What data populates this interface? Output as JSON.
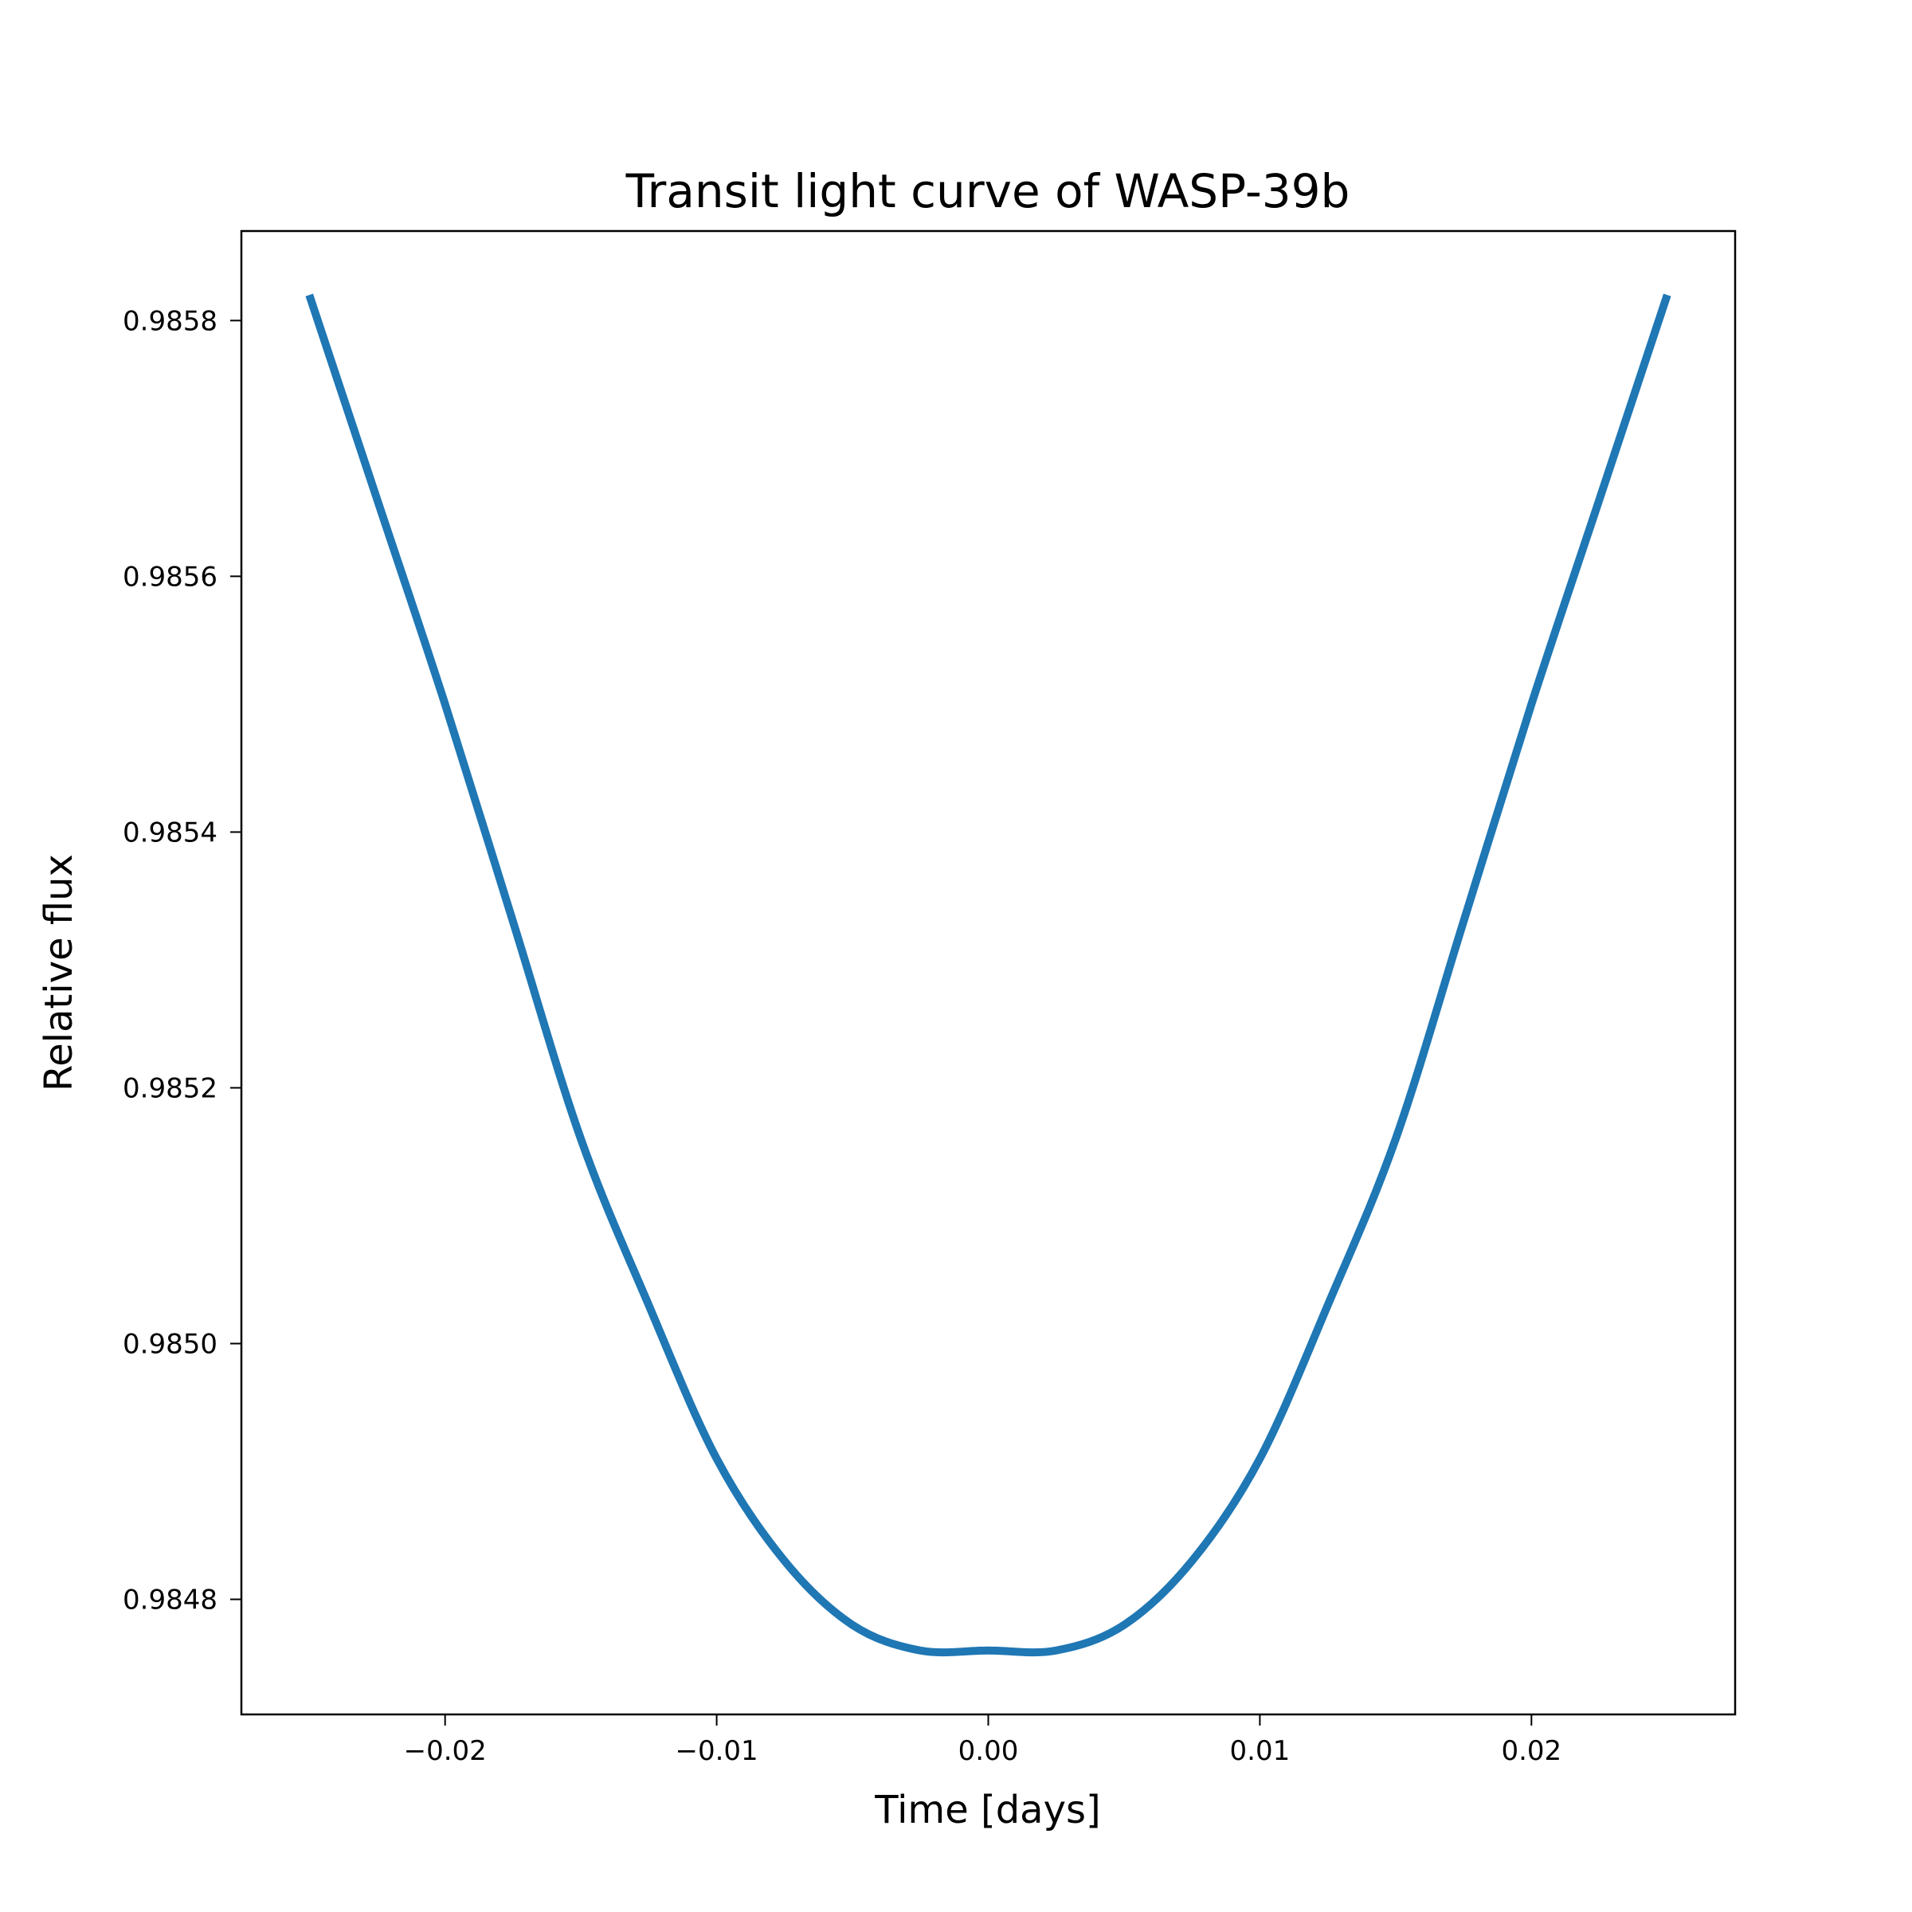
{
  "chart_data": {
    "type": "line",
    "title": "Transit light curve of WASP-39b",
    "xlabel": "Time [days]",
    "ylabel": "Relative flux",
    "xlim": [
      -0.0275,
      0.0275
    ],
    "ylim": [
      0.98471,
      0.98587
    ],
    "grid": false,
    "xticks": [
      -0.02,
      -0.01,
      0.0,
      0.01,
      0.02
    ],
    "xtick_labels": [
      "−0.02",
      "−0.01",
      "0.00",
      "0.01",
      "0.02"
    ],
    "yticks": [
      0.9848,
      0.985,
      0.9852,
      0.9854,
      0.9856,
      0.9858
    ],
    "ytick_labels": [
      "0.9848",
      "0.9850",
      "0.9852",
      "0.9854",
      "0.9856",
      "0.9858"
    ],
    "series": [
      {
        "color": "#1f77b4",
        "x": [
          -0.025,
          -0.0225,
          -0.02,
          -0.0175,
          -0.015,
          -0.0125,
          -0.01,
          -0.0075,
          -0.005,
          -0.0025,
          0.0,
          0.0025,
          0.005,
          0.0075,
          0.01,
          0.0125,
          0.015,
          0.0175,
          0.02,
          0.0225,
          0.025
        ],
        "y": [
          0.98582,
          0.98566,
          0.9855,
          0.98533,
          0.98516,
          0.98503,
          0.98491,
          0.98483,
          0.98478,
          0.98476,
          0.98476,
          0.98476,
          0.98478,
          0.98483,
          0.98491,
          0.98503,
          0.98516,
          0.98533,
          0.9855,
          0.98566,
          0.98582
        ]
      }
    ]
  }
}
